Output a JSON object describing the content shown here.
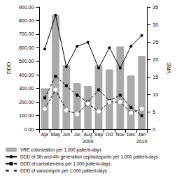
{
  "chart_data": {
    "type": "bar",
    "categories": [
      "Apr",
      "May",
      "Jun",
      "Jul",
      "Aug",
      "Sep",
      "Oct",
      "Nov",
      "Dec",
      "Jan"
    ],
    "y_label": "DDD",
    "y2_label": "VRE",
    "annotations": [
      {
        "text": "2009",
        "x": "Aug"
      },
      {
        "text": "2010",
        "x": "Jan"
      }
    ],
    "ylim": [
      0,
      900
    ],
    "yticks": [
      {
        "value": 0,
        "label": "0.00"
      },
      {
        "value": 100,
        "label": "100.00"
      },
      {
        "value": 200,
        "label": "200.00"
      },
      {
        "value": 300,
        "label": "300.00"
      },
      {
        "value": 400,
        "label": "400.00"
      },
      {
        "value": 500,
        "label": "500.00"
      },
      {
        "value": 600,
        "label": "600.00"
      },
      {
        "value": 700,
        "label": "700.00"
      },
      {
        "value": 800,
        "label": "800.00"
      },
      {
        "value": 900,
        "label": "900.00"
      }
    ],
    "y2lim": [
      0,
      35
    ],
    "y2ticks": [
      0,
      5,
      10,
      15,
      20,
      25,
      30,
      35
    ],
    "grid": false,
    "legend": "bottom",
    "series": [
      {
        "name": "VRE colonization per 1,000 patient-days",
        "type": "bar",
        "axis": "y2",
        "color": "#aaaaaa",
        "values": [
          11.7,
          32.7,
          18.3,
          13.2,
          12.4,
          18.3,
          17.1,
          23.7,
          15.4,
          21.0
        ]
      },
      {
        "name": "DDD of 3th and 4th generation cephalosporin per 1,000 patient-days",
        "type": "line",
        "color": "#000000",
        "marker": "circle",
        "line_style": "solid",
        "values": [
          590,
          840,
          460,
          610,
          640,
          450,
          600,
          450,
          610,
          690
        ]
      },
      {
        "name": "DDD of carbabenems per 1,000 patient-days",
        "type": "line",
        "color": "#000000",
        "marker": "square",
        "line_style": "dashed",
        "values": [
          230,
          390,
          320,
          250,
          200,
          290,
          210,
          250,
          160,
          100
        ]
      },
      {
        "name": "DDD of vancomycin per 1,000 patient-days",
        "type": "line",
        "color": "#000000",
        "marker": "emptyCircle",
        "line_style": "dashed",
        "values": [
          150,
          290,
          140,
          110,
          190,
          130,
          200,
          200,
          120,
          150
        ]
      }
    ]
  }
}
